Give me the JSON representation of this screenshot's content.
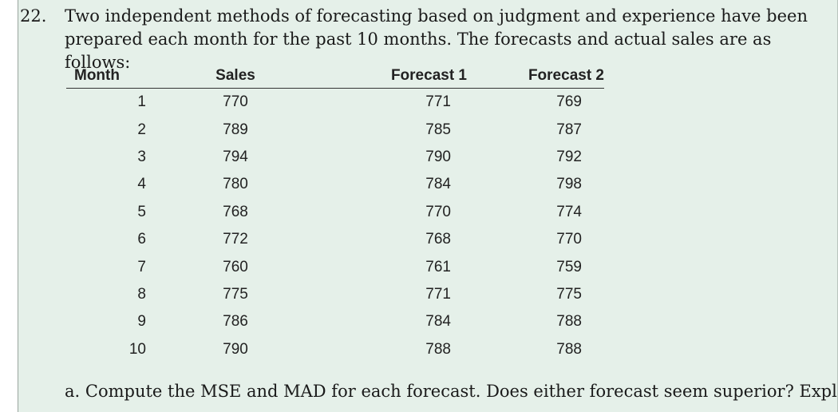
{
  "problem": {
    "number": "22.",
    "text": "Two independent methods of forecasting based on judgment and experience have been prepared each month for the past 10 months. The forecasts and actual sales are as follows:"
  },
  "table": {
    "headers": [
      "Month",
      "Sales",
      "Forecast 1",
      "Forecast 2"
    ],
    "rows": [
      [
        "1",
        "770",
        "771",
        "769"
      ],
      [
        "2",
        "789",
        "785",
        "787"
      ],
      [
        "3",
        "794",
        "790",
        "792"
      ],
      [
        "4",
        "780",
        "784",
        "798"
      ],
      [
        "5",
        "768",
        "770",
        "774"
      ],
      [
        "6",
        "772",
        "768",
        "770"
      ],
      [
        "7",
        "760",
        "761",
        "759"
      ],
      [
        "8",
        "775",
        "771",
        "775"
      ],
      [
        "9",
        "786",
        "784",
        "788"
      ],
      [
        "10",
        "790",
        "788",
        "788"
      ]
    ]
  },
  "question_a": "a.  Compute the MSE and MAD for each forecast. Does either forecast seem superior? Explain."
}
